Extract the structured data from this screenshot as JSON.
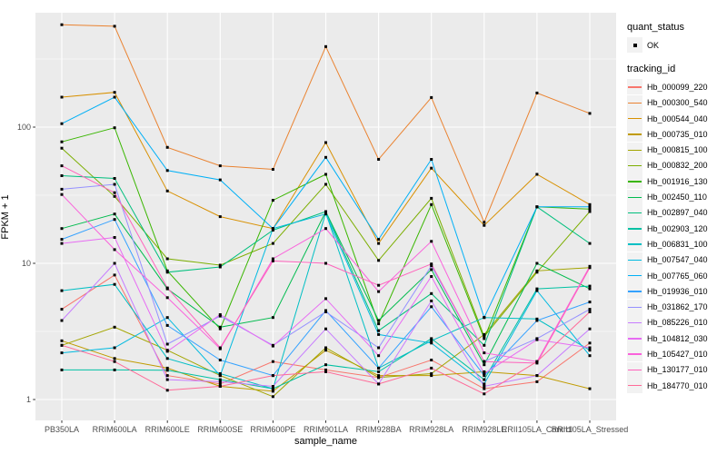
{
  "colors": {
    "panel_bg": "#EBEBEB",
    "grid_major": "#FFFFFF",
    "grid_minor": "#FFFFFF",
    "tick_mark": "#333333",
    "tick_text": "#4D4D4D",
    "point": "#000000",
    "legend_key_bg": "#F2F2F2"
  },
  "chart_data": {
    "type": "line",
    "title": "",
    "xlabel": "sample_name",
    "ylabel": "FPKM + 1",
    "y_scale": "log10",
    "ylim": [
      0.72,
      700
    ],
    "y_ticks": [
      1,
      10,
      100
    ],
    "y_tick_labels": [
      "1",
      "10",
      "100"
    ],
    "y_minor_ticks": [
      3.162,
      31.62,
      316.2
    ],
    "grid": true,
    "legend_position": "right",
    "categories": [
      "PB350LA",
      "RRIM600LA",
      "RRIM600LE",
      "RRIM600SE",
      "RRIM600PE",
      "RRIM901LA",
      "RRIM928BA",
      "RRIM928LA",
      "RRIM928LE",
      "RRII105LA_Control",
      "RRII105LA_Stressed"
    ],
    "legend": {
      "quant_status_title": "quant_status",
      "quant_status_items": [
        {
          "label": "OK",
          "marker": "black-point"
        }
      ],
      "tracking_title": "tracking_id"
    },
    "series": [
      {
        "name": "Hb_000099_220",
        "color": "#F8766D",
        "values": [
          4.6,
          8.2,
          1.5,
          1.3,
          1.9,
          1.65,
          1.45,
          1.95,
          1.2,
          1.35,
          2.6
        ]
      },
      {
        "name": "Hb_000300_540",
        "color": "#EA8331",
        "values": [
          565,
          550,
          71,
          52,
          49,
          390,
          58,
          165,
          20,
          178,
          126
        ]
      },
      {
        "name": "Hb_000544_040",
        "color": "#D89000",
        "values": [
          166,
          180,
          34,
          22,
          18,
          77,
          14,
          50,
          19,
          45,
          27
        ]
      },
      {
        "name": "Hb_000735_010",
        "color": "#C09B00",
        "values": [
          2.7,
          2.0,
          1.7,
          1.25,
          1.15,
          2.3,
          1.5,
          1.5,
          1.6,
          1.5,
          1.2
        ]
      },
      {
        "name": "Hb_000815_100",
        "color": "#A3A500",
        "values": [
          2.5,
          3.4,
          2.3,
          1.5,
          1.05,
          2.4,
          1.45,
          1.55,
          3.0,
          8.8,
          9.3
        ]
      },
      {
        "name": "Hb_000832_200",
        "color": "#7CAE00",
        "values": [
          70,
          31,
          10.8,
          9.7,
          14,
          38,
          10.5,
          30,
          2.9,
          8.6,
          24
        ]
      },
      {
        "name": "Hb_001916_130",
        "color": "#39B600",
        "values": [
          78,
          99,
          8.8,
          3.3,
          29,
          45,
          3.6,
          27,
          2.8,
          26,
          25
        ]
      },
      {
        "name": "Hb_002450_110",
        "color": "#00BB4E",
        "values": [
          18,
          23,
          6.5,
          3.4,
          4.0,
          24,
          3.8,
          9.0,
          1.8,
          10,
          6.5
        ]
      },
      {
        "name": "Hb_002897_040",
        "color": "#00BF7D",
        "values": [
          44,
          42,
          8.6,
          9.4,
          17.5,
          24,
          3.2,
          6.0,
          2.5,
          26,
          14
        ]
      },
      {
        "name": "Hb_002903_120",
        "color": "#00C1A3",
        "values": [
          1.65,
          1.65,
          1.64,
          1.4,
          1.2,
          1.8,
          1.6,
          2.8,
          1.4,
          6.5,
          6.8
        ]
      },
      {
        "name": "Hb_006831_100",
        "color": "#00BFC4",
        "values": [
          6.3,
          7.0,
          2.0,
          1.55,
          1.2,
          23.5,
          1.7,
          2.7,
          4.0,
          3.9,
          2.3
        ]
      },
      {
        "name": "Hb_007547_040",
        "color": "#00BAE0",
        "values": [
          2.2,
          2.4,
          4.0,
          1.5,
          18,
          23,
          3.0,
          2.6,
          1.3,
          6.3,
          2.1
        ]
      },
      {
        "name": "Hb_007765_060",
        "color": "#00B0F6",
        "values": [
          106,
          166,
          48,
          41,
          18,
          60,
          15,
          58,
          4.0,
          26,
          26
        ]
      },
      {
        "name": "Hb_019936_010",
        "color": "#35A2FF",
        "values": [
          15,
          21,
          3.5,
          1.95,
          1.5,
          4.5,
          1.7,
          4.8,
          1.5,
          3.8,
          5.2
        ]
      },
      {
        "name": "Hb_031862_170",
        "color": "#9590FF",
        "values": [
          35,
          38,
          2.55,
          4.1,
          2.5,
          4.4,
          2.4,
          9.6,
          1.9,
          2.8,
          4.6
        ]
      },
      {
        "name": "Hb_085226_010",
        "color": "#C77CFF",
        "values": [
          3.8,
          10,
          1.4,
          1.35,
          1.25,
          3.3,
          1.3,
          5.3,
          1.25,
          1.5,
          3.3
        ]
      },
      {
        "name": "Hb_104812_030",
        "color": "#E76BF3",
        "values": [
          14,
          15.5,
          2.26,
          4.2,
          2.47,
          5.5,
          2.1,
          8.0,
          1.55,
          2.75,
          2.4
        ]
      },
      {
        "name": "Hb_105427_010",
        "color": "#FA62DB",
        "values": [
          32,
          12.6,
          5.6,
          2.36,
          10.8,
          18,
          6.2,
          14.5,
          2.2,
          1.9,
          9.5
        ]
      },
      {
        "name": "Hb_130177_010",
        "color": "#FF62BC",
        "values": [
          52,
          33,
          6.6,
          2.4,
          10.4,
          10,
          6.9,
          9.9,
          1.9,
          1.85,
          9.3
        ]
      },
      {
        "name": "Hb_184770_010",
        "color": "#FF6A98",
        "values": [
          2.5,
          1.9,
          1.17,
          1.25,
          1.5,
          1.6,
          1.3,
          1.7,
          1.1,
          1.9,
          4.4
        ]
      }
    ]
  }
}
